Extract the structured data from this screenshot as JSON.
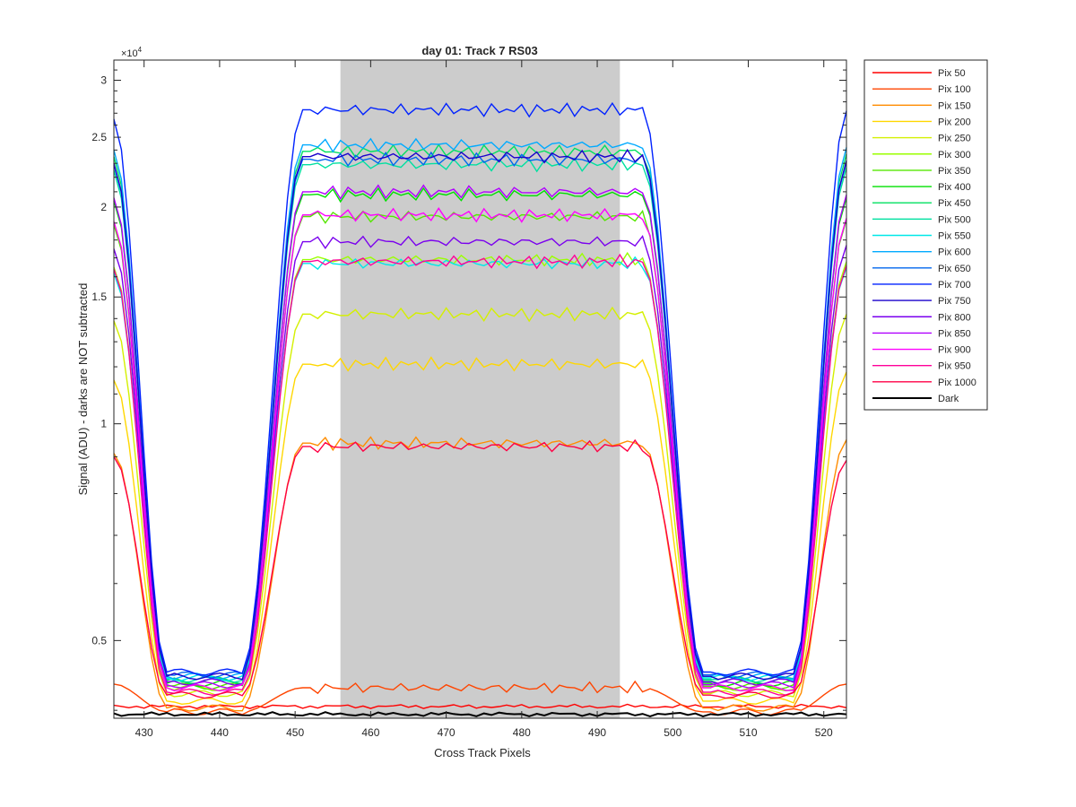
{
  "chart_data": {
    "type": "line",
    "title": "day 01: Track 7  RS03",
    "xlabel": "Cross Track Pixels",
    "ylabel": "Signal (ADU) - darks are NOT subtracted",
    "y_exponent_label": "×10",
    "y_exponent_power": "4",
    "xlim": [
      426,
      523
    ],
    "ylim": [
      3900,
      32000
    ],
    "yscale": "log",
    "x_ticks": [
      430,
      440,
      450,
      460,
      470,
      480,
      490,
      500,
      510,
      520
    ],
    "x_tick_labels": [
      "430",
      "440",
      "450",
      "460",
      "470",
      "480",
      "490",
      "500",
      "510",
      "520"
    ],
    "y_ticks": [
      5000,
      10000,
      15000,
      20000,
      25000,
      30000
    ],
    "y_tick_labels": [
      "0.5",
      "1",
      "1.5",
      "2",
      "2.5",
      "3"
    ],
    "shaded_region": {
      "x_start": 456,
      "x_end": 493,
      "color": "#cccccc"
    },
    "legend_position": "outside-right",
    "series": [
      {
        "name": "Pix 50",
        "color": "#ff0000",
        "plateau": 4050,
        "low": 4050,
        "edge_left": 4050,
        "edge_right": 4050,
        "shape": "flat"
      },
      {
        "name": "Pix 100",
        "color": "#ff4500",
        "plateau": 4300,
        "low": 3980,
        "edge_left": 4350,
        "edge_right": 4350,
        "shape": "profile"
      },
      {
        "name": "Pix 150",
        "color": "#ff8c00",
        "plateau": 9400,
        "low": 4030,
        "edge_left": 9100,
        "edge_right": 9500,
        "shape": "profile"
      },
      {
        "name": "Pix 200",
        "color": "#ffd700",
        "plateau": 12100,
        "low": 4120,
        "edge_left": 11500,
        "edge_right": 11800,
        "shape": "profile"
      },
      {
        "name": "Pix 250",
        "color": "#d4f000",
        "plateau": 14200,
        "low": 4220,
        "edge_left": 13900,
        "edge_right": 14200,
        "shape": "profile"
      },
      {
        "name": "Pix 300",
        "color": "#9aff00",
        "plateau": 16900,
        "low": 4300,
        "edge_left": 16500,
        "edge_right": 16800,
        "shape": "profile"
      },
      {
        "name": "Pix 350",
        "color": "#55e600",
        "plateau": 19400,
        "low": 4320,
        "edge_left": 18900,
        "edge_right": 19200,
        "shape": "profile"
      },
      {
        "name": "Pix 400",
        "color": "#00e000",
        "plateau": 20800,
        "low": 4360,
        "edge_left": 20400,
        "edge_right": 20600,
        "shape": "profile"
      },
      {
        "name": "Pix 450",
        "color": "#00e060",
        "plateau": 23900,
        "low": 4400,
        "edge_left": 23500,
        "edge_right": 23700,
        "shape": "profile"
      },
      {
        "name": "Pix 500",
        "color": "#00e0a0",
        "plateau": 22900,
        "low": 4420,
        "edge_left": 22500,
        "edge_right": 22700,
        "shape": "profile"
      },
      {
        "name": "Pix 550",
        "color": "#00e8e8",
        "plateau": 16700,
        "low": 4440,
        "edge_left": 16200,
        "edge_right": 16500,
        "shape": "profile"
      },
      {
        "name": "Pix 600",
        "color": "#00aaff",
        "plateau": 24400,
        "low": 4460,
        "edge_left": 24000,
        "edge_right": 24200,
        "shape": "profile"
      },
      {
        "name": "Pix 650",
        "color": "#0066ee",
        "plateau": 23300,
        "low": 4480,
        "edge_left": 22900,
        "edge_right": 23100,
        "shape": "profile"
      },
      {
        "name": "Pix 700",
        "color": "#0022ff",
        "plateau": 27300,
        "low": 4520,
        "edge_left": 26500,
        "edge_right": 27200,
        "shape": "profile"
      },
      {
        "name": "Pix 750",
        "color": "#1a00cc",
        "plateau": 23500,
        "low": 4460,
        "edge_left": 23000,
        "edge_right": 23200,
        "shape": "profile"
      },
      {
        "name": "Pix 800",
        "color": "#7a00ee",
        "plateau": 17900,
        "low": 4380,
        "edge_left": 17500,
        "edge_right": 17700,
        "shape": "profile"
      },
      {
        "name": "Pix 850",
        "color": "#b000ff",
        "plateau": 21000,
        "low": 4340,
        "edge_left": 20600,
        "edge_right": 20800,
        "shape": "profile"
      },
      {
        "name": "Pix 900",
        "color": "#ff00ff",
        "plateau": 19500,
        "low": 4300,
        "edge_left": 19100,
        "edge_right": 19300,
        "shape": "profile"
      },
      {
        "name": "Pix 950",
        "color": "#ff0099",
        "plateau": 16800,
        "low": 4240,
        "edge_left": 16400,
        "edge_right": 16600,
        "shape": "profile"
      },
      {
        "name": "Pix 1000",
        "color": "#ff0044",
        "plateau": 9300,
        "low": 4200,
        "edge_left": 9000,
        "edge_right": 8900,
        "shape": "profile"
      },
      {
        "name": "Dark",
        "color": "#000000",
        "plateau": 3950,
        "low": 3950,
        "edge_left": 3950,
        "edge_right": 3950,
        "shape": "flat"
      }
    ]
  }
}
